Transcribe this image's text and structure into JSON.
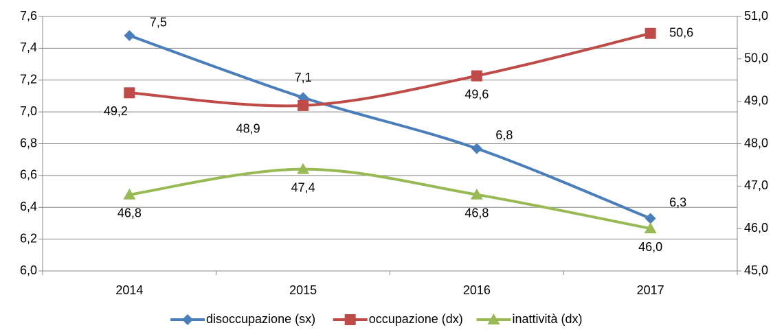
{
  "chart_data": {
    "type": "line",
    "categories": [
      "2014",
      "2015",
      "2016",
      "2017"
    ],
    "series": [
      {
        "name": "disoccupazione (sx)",
        "color": "#4a7ebb",
        "marker": "diamond",
        "values": [
          7.48,
          7.09,
          6.77,
          6.33
        ],
        "value_labels": [
          "7,5",
          "7,1",
          "6,8",
          "6,3"
        ]
      },
      {
        "name": "occupazione (dx)",
        "color": "#be4b48",
        "marker": "square",
        "axis": "y2",
        "values": [
          49.2,
          48.9,
          49.6,
          50.6
        ],
        "value_labels": [
          "49,2",
          "48,9",
          "49,6",
          "50,6"
        ]
      },
      {
        "name": "inattività (dx)",
        "color": "#98b954",
        "marker": "triangle",
        "axis": "y2",
        "values": [
          46.8,
          47.4,
          46.8,
          46.0
        ],
        "value_labels": [
          "46,8",
          "47,4",
          "46,8",
          "46,0"
        ]
      }
    ],
    "ylim": [
      6.0,
      7.6
    ],
    "yticks": [
      {
        "value": 6.0,
        "label": "6,0"
      },
      {
        "value": 6.2,
        "label": "6,2"
      },
      {
        "value": 6.4,
        "label": "6,4"
      },
      {
        "value": 6.6,
        "label": "6,6"
      },
      {
        "value": 6.8,
        "label": "6,8"
      },
      {
        "value": 7.0,
        "label": "7,0"
      },
      {
        "value": 7.2,
        "label": "7,2"
      },
      {
        "value": 7.4,
        "label": "7,4"
      },
      {
        "value": 7.6,
        "label": "7,6"
      }
    ],
    "y2lim": [
      45.0,
      51.0
    ],
    "y2ticks": [
      {
        "value": 45.0,
        "label": "45,0"
      },
      {
        "value": 46.0,
        "label": "46,0"
      },
      {
        "value": 47.0,
        "label": "47,0"
      },
      {
        "value": 48.0,
        "label": "48,0"
      },
      {
        "value": 49.0,
        "label": "49,0"
      },
      {
        "value": 50.0,
        "label": "50,0"
      },
      {
        "value": 51.0,
        "label": "51,0"
      }
    ],
    "grid": true,
    "legend": "bottom"
  }
}
